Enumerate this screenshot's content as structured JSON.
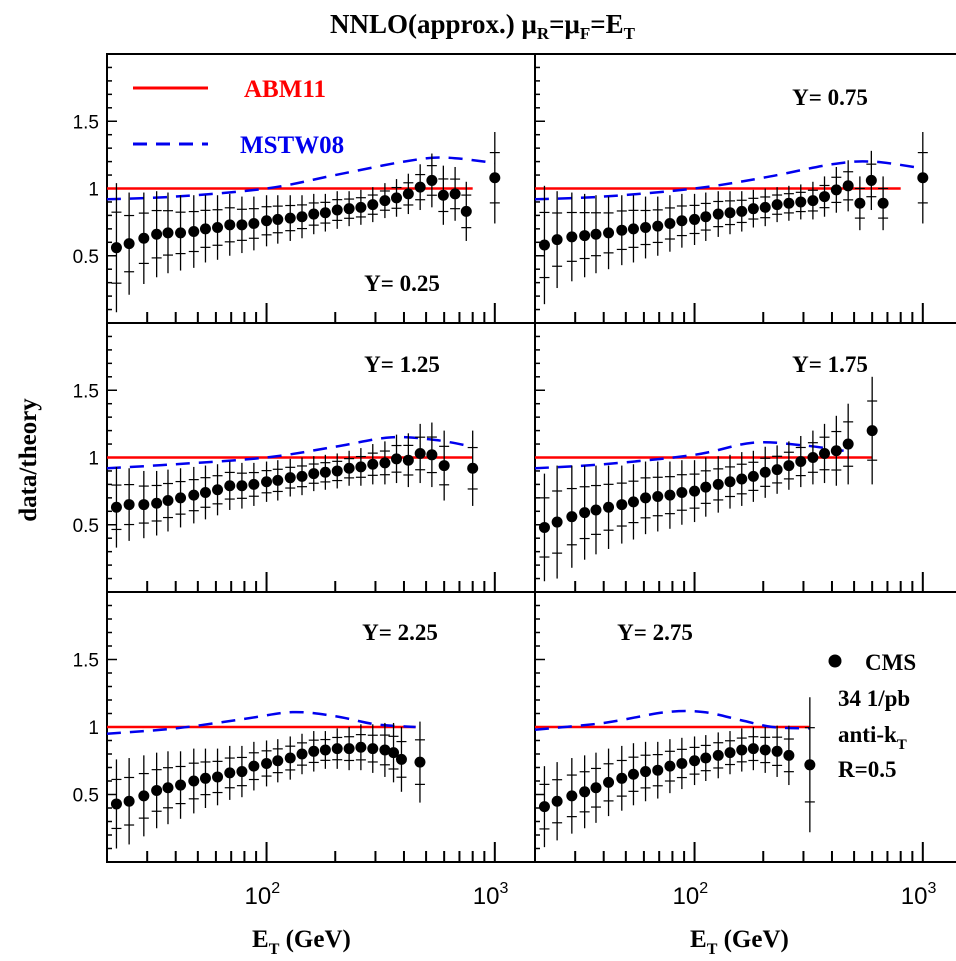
{
  "figure": {
    "title": {
      "main": "NNLO(approx.) ",
      "mu": "μ",
      "sub_r": "R",
      "eq": "=",
      "sub_f": "F",
      "eq2": "=E",
      "sub_t": "T"
    },
    "ylabel": "data/theory",
    "xlabel": {
      "main": "E",
      "sub": "T",
      "rest": " (GeV)"
    },
    "legend": {
      "abm": "ABM11",
      "mstw": "MSTW08",
      "cms": "CMS",
      "lumi": "34 1/pb",
      "algo_main": "anti-k",
      "algo_sub": "T",
      "radius": "R=0.5"
    },
    "colors": {
      "abm": "#ff0000",
      "mstw": "#0000ee",
      "data": "#000000"
    }
  },
  "chart_data": [
    {
      "type": "scatter",
      "label": "Y= 0.25",
      "xscale": "log",
      "xlim": [
        20,
        1500
      ],
      "ylim": [
        0,
        2
      ],
      "x_tick_labels": [
        "10^2",
        "10^3"
      ],
      "y_tick_labels": [
        "0.5",
        "1",
        "1.5"
      ],
      "abm11": {
        "x": [
          20,
          800
        ],
        "y": [
          1,
          1
        ]
      },
      "mstw08": {
        "x": [
          20,
          40,
          100,
          200,
          400,
          600,
          1000
        ],
        "y": [
          0.92,
          0.94,
          1.0,
          1.1,
          1.2,
          1.23,
          1.19
        ]
      },
      "points": {
        "x": [
          22,
          25,
          29,
          33,
          37,
          42,
          48,
          54,
          61,
          69,
          78,
          88,
          100,
          112,
          127,
          143,
          161,
          181,
          204,
          230,
          259,
          292,
          330,
          371,
          418,
          471,
          530,
          595,
          670,
          750,
          1000
        ],
        "y": [
          0.56,
          0.59,
          0.63,
          0.66,
          0.67,
          0.67,
          0.68,
          0.7,
          0.71,
          0.73,
          0.73,
          0.74,
          0.76,
          0.77,
          0.78,
          0.79,
          0.81,
          0.82,
          0.84,
          0.85,
          0.86,
          0.88,
          0.91,
          0.93,
          0.96,
          1.01,
          1.06,
          0.95,
          0.96,
          0.83,
          1.08
        ],
        "err": [
          0.48,
          0.38,
          0.34,
          0.32,
          0.3,
          0.28,
          0.27,
          0.25,
          0.24,
          0.23,
          0.21,
          0.2,
          0.19,
          0.18,
          0.17,
          0.16,
          0.15,
          0.14,
          0.14,
          0.13,
          0.13,
          0.13,
          0.13,
          0.14,
          0.15,
          0.17,
          0.2,
          0.22,
          0.2,
          0.22,
          0.34
        ]
      }
    },
    {
      "type": "scatter",
      "label": "Y= 0.75",
      "xscale": "log",
      "xlim": [
        20,
        1500
      ],
      "ylim": [
        0,
        2
      ],
      "x_tick_labels": [
        "10^2",
        "10^3"
      ],
      "y_tick_labels": [],
      "abm11": {
        "x": [
          20,
          800
        ],
        "y": [
          1,
          1
        ]
      },
      "mstw08": {
        "x": [
          20,
          40,
          100,
          200,
          400,
          600,
          1000
        ],
        "y": [
          0.92,
          0.94,
          1.0,
          1.08,
          1.18,
          1.2,
          1.15
        ]
      },
      "points": {
        "x": [
          22,
          25,
          29,
          33,
          37,
          42,
          48,
          54,
          61,
          69,
          78,
          88,
          100,
          112,
          127,
          143,
          161,
          181,
          204,
          230,
          259,
          292,
          330,
          371,
          418,
          471,
          530,
          595,
          670,
          1000
        ],
        "y": [
          0.58,
          0.62,
          0.64,
          0.65,
          0.66,
          0.67,
          0.69,
          0.7,
          0.71,
          0.72,
          0.74,
          0.76,
          0.77,
          0.79,
          0.81,
          0.82,
          0.83,
          0.85,
          0.86,
          0.88,
          0.89,
          0.9,
          0.91,
          0.94,
          0.99,
          1.02,
          0.89,
          1.06,
          0.89,
          1.08
        ],
        "err": [
          0.44,
          0.36,
          0.33,
          0.31,
          0.29,
          0.27,
          0.26,
          0.25,
          0.23,
          0.22,
          0.21,
          0.2,
          0.19,
          0.18,
          0.17,
          0.16,
          0.15,
          0.14,
          0.14,
          0.13,
          0.13,
          0.13,
          0.14,
          0.15,
          0.17,
          0.19,
          0.2,
          0.22,
          0.2,
          0.34
        ]
      }
    },
    {
      "type": "scatter",
      "label": "Y= 1.25",
      "xscale": "log",
      "xlim": [
        20,
        1500
      ],
      "ylim": [
        0,
        2
      ],
      "x_tick_labels": [
        "10^2",
        "10^3"
      ],
      "y_tick_labels": [
        "0.5",
        "1",
        "1.5"
      ],
      "abm11": {
        "x": [
          20,
          800
        ],
        "y": [
          1,
          1
        ]
      },
      "mstw08": {
        "x": [
          20,
          40,
          100,
          200,
          350,
          550,
          800
        ],
        "y": [
          0.92,
          0.95,
          1.0,
          1.08,
          1.15,
          1.13,
          1.08
        ]
      },
      "points": {
        "x": [
          22,
          25,
          29,
          33,
          37,
          42,
          48,
          54,
          61,
          69,
          78,
          88,
          100,
          112,
          127,
          143,
          161,
          181,
          204,
          230,
          259,
          292,
          330,
          371,
          418,
          471,
          530,
          600,
          800
        ],
        "y": [
          0.63,
          0.65,
          0.65,
          0.66,
          0.68,
          0.7,
          0.72,
          0.74,
          0.76,
          0.79,
          0.79,
          0.8,
          0.82,
          0.83,
          0.85,
          0.86,
          0.88,
          0.89,
          0.9,
          0.92,
          0.93,
          0.95,
          0.96,
          0.99,
          0.98,
          1.03,
          1.02,
          0.94,
          0.92
        ],
        "err": [
          0.3,
          0.27,
          0.25,
          0.24,
          0.23,
          0.22,
          0.21,
          0.2,
          0.19,
          0.18,
          0.17,
          0.16,
          0.15,
          0.15,
          0.14,
          0.14,
          0.13,
          0.13,
          0.13,
          0.13,
          0.14,
          0.15,
          0.16,
          0.18,
          0.2,
          0.22,
          0.24,
          0.26,
          0.28
        ]
      }
    },
    {
      "type": "scatter",
      "label": "Y= 1.75",
      "xscale": "log",
      "xlim": [
        20,
        1500
      ],
      "ylim": [
        0,
        2
      ],
      "x_tick_labels": [
        "10^2",
        "10^3"
      ],
      "y_tick_labels": [],
      "abm11": {
        "x": [
          20,
          600
        ],
        "y": [
          1,
          1
        ]
      },
      "mstw08": {
        "x": [
          20,
          40,
          100,
          180,
          300,
          450
        ],
        "y": [
          0.92,
          0.95,
          1.02,
          1.11,
          1.09,
          1.05
        ]
      },
      "points": {
        "x": [
          22,
          25,
          29,
          33,
          37,
          42,
          48,
          54,
          61,
          69,
          78,
          88,
          100,
          112,
          127,
          143,
          161,
          181,
          204,
          230,
          259,
          292,
          330,
          371,
          418,
          471,
          600
        ],
        "y": [
          0.48,
          0.52,
          0.56,
          0.59,
          0.61,
          0.63,
          0.65,
          0.67,
          0.7,
          0.71,
          0.72,
          0.74,
          0.75,
          0.78,
          0.8,
          0.82,
          0.84,
          0.86,
          0.89,
          0.91,
          0.94,
          0.97,
          1.0,
          1.03,
          1.05,
          1.1,
          1.2
        ],
        "err": [
          0.4,
          0.42,
          0.38,
          0.35,
          0.33,
          0.31,
          0.29,
          0.28,
          0.27,
          0.26,
          0.25,
          0.24,
          0.23,
          0.22,
          0.21,
          0.2,
          0.2,
          0.19,
          0.19,
          0.18,
          0.18,
          0.19,
          0.2,
          0.22,
          0.26,
          0.3,
          0.4
        ]
      }
    },
    {
      "type": "scatter",
      "label": "Y= 2.25",
      "xscale": "log",
      "xlim": [
        20,
        1500
      ],
      "ylim": [
        0,
        2
      ],
      "x_tick_labels": [
        "10^2",
        "10^3"
      ],
      "y_tick_labels": [
        "0.5",
        "1",
        "1.5"
      ],
      "abm11": {
        "x": [
          20,
          450
        ],
        "y": [
          1,
          1
        ]
      },
      "mstw08": {
        "x": [
          20,
          40,
          80,
          130,
          200,
          300,
          450
        ],
        "y": [
          0.95,
          0.99,
          1.06,
          1.11,
          1.08,
          1.02,
          1.0
        ]
      },
      "points": {
        "x": [
          22,
          25,
          29,
          33,
          37,
          42,
          48,
          54,
          61,
          69,
          78,
          88,
          100,
          112,
          127,
          143,
          161,
          181,
          204,
          230,
          259,
          292,
          330,
          360,
          390,
          470
        ],
        "y": [
          0.43,
          0.45,
          0.49,
          0.53,
          0.55,
          0.57,
          0.6,
          0.62,
          0.63,
          0.66,
          0.67,
          0.71,
          0.73,
          0.75,
          0.77,
          0.8,
          0.82,
          0.83,
          0.84,
          0.84,
          0.85,
          0.84,
          0.83,
          0.81,
          0.76,
          0.74
        ],
        "err": [
          0.33,
          0.32,
          0.3,
          0.28,
          0.27,
          0.25,
          0.24,
          0.22,
          0.21,
          0.2,
          0.19,
          0.18,
          0.17,
          0.16,
          0.16,
          0.15,
          0.15,
          0.14,
          0.15,
          0.16,
          0.17,
          0.18,
          0.2,
          0.22,
          0.24,
          0.3
        ]
      }
    },
    {
      "type": "scatter",
      "label": "Y= 2.75",
      "xscale": "log",
      "xlim": [
        20,
        1500
      ],
      "ylim": [
        0,
        2
      ],
      "x_tick_labels": [
        "10^2",
        "10^3"
      ],
      "y_tick_labels": [],
      "abm11": {
        "x": [
          20,
          320
        ],
        "y": [
          1,
          1
        ]
      },
      "mstw08": {
        "x": [
          20,
          40,
          75,
          110,
          160,
          220,
          320
        ],
        "y": [
          0.98,
          1.03,
          1.11,
          1.11,
          1.05,
          1.0,
          0.99
        ]
      },
      "points": {
        "x": [
          22,
          25,
          29,
          33,
          37,
          42,
          48,
          54,
          61,
          69,
          78,
          88,
          100,
          112,
          127,
          143,
          161,
          181,
          204,
          230,
          259,
          320
        ],
        "y": [
          0.41,
          0.45,
          0.49,
          0.52,
          0.55,
          0.59,
          0.62,
          0.65,
          0.67,
          0.68,
          0.71,
          0.73,
          0.75,
          0.77,
          0.79,
          0.81,
          0.83,
          0.84,
          0.83,
          0.82,
          0.79,
          0.72
        ],
        "err": [
          0.3,
          0.29,
          0.28,
          0.27,
          0.26,
          0.25,
          0.24,
          0.23,
          0.22,
          0.21,
          0.2,
          0.19,
          0.18,
          0.17,
          0.17,
          0.16,
          0.16,
          0.16,
          0.17,
          0.19,
          0.22,
          0.5
        ]
      }
    }
  ]
}
